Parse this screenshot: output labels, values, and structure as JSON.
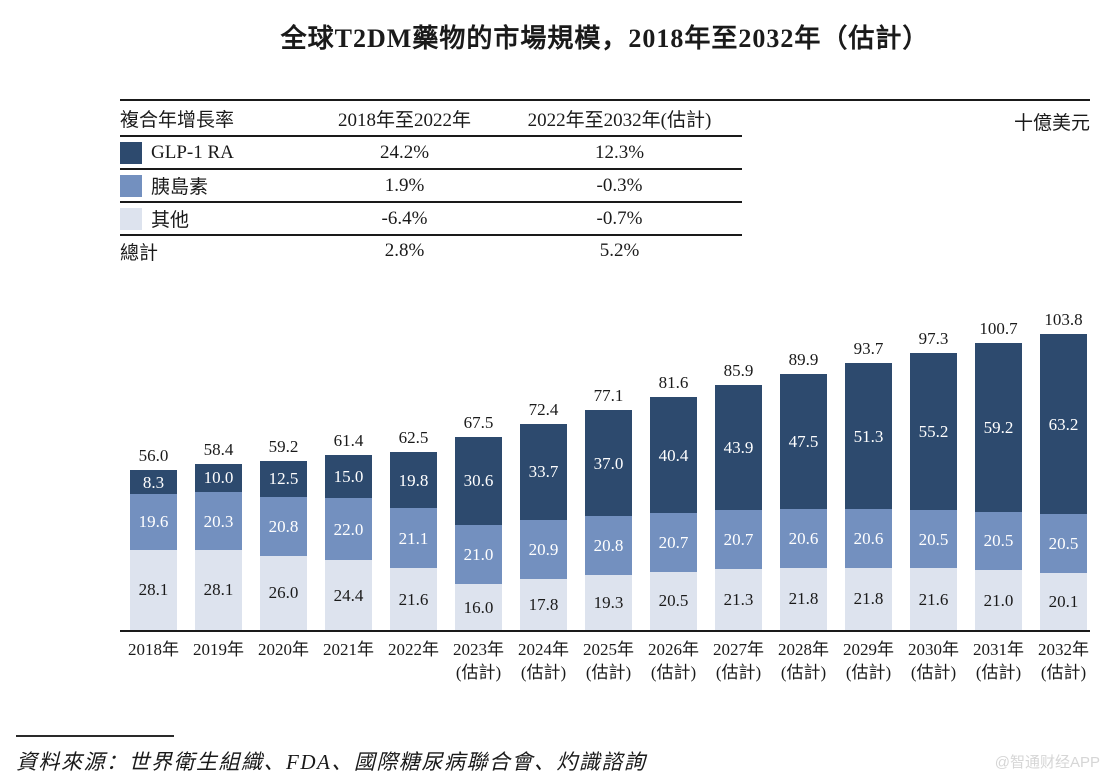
{
  "title": "全球T2DM藥物的市場規模，2018年至2032年（估計）",
  "unit_label": "十億美元",
  "growth_table": {
    "header": [
      "複合年增長率",
      "2018年至2022年",
      "2022年至2032年(估計)"
    ],
    "rows": [
      {
        "label": "GLP-1 RA",
        "swatch": "#2d4a6e",
        "period1": "24.2%",
        "period2": "12.3%"
      },
      {
        "label": "胰島素",
        "swatch": "#7390bf",
        "period1": "1.9%",
        "period2": "-0.3%"
      },
      {
        "label": "其他",
        "swatch": "#dde3ee",
        "period1": "-6.4%",
        "period2": "-0.7%"
      }
    ],
    "total": {
      "label": "總計",
      "period1": "2.8%",
      "period2": "5.2%"
    }
  },
  "chart_data": {
    "type": "bar",
    "stacked": true,
    "title": "全球T2DM藥物的市場規模，2018年至2032年（估計）",
    "ylabel": "十億美元",
    "ylim": [
      0,
      110
    ],
    "grid": false,
    "legend_position": "table-left",
    "categories": [
      {
        "label": "2018年",
        "note": ""
      },
      {
        "label": "2019年",
        "note": ""
      },
      {
        "label": "2020年",
        "note": ""
      },
      {
        "label": "2021年",
        "note": ""
      },
      {
        "label": "2022年",
        "note": ""
      },
      {
        "label": "2023年",
        "note": "(估計)"
      },
      {
        "label": "2024年",
        "note": "(估計)"
      },
      {
        "label": "2025年",
        "note": "(估計)"
      },
      {
        "label": "2026年",
        "note": "(估計)"
      },
      {
        "label": "2027年",
        "note": "(估計)"
      },
      {
        "label": "2028年",
        "note": "(估計)"
      },
      {
        "label": "2029年",
        "note": "(估計)"
      },
      {
        "label": "2030年",
        "note": "(估計)"
      },
      {
        "label": "2031年",
        "note": "(估計)"
      },
      {
        "label": "2032年",
        "note": "(估計)"
      }
    ],
    "series": [
      {
        "name": "其他",
        "color": "#dde3ee",
        "label_color": "#1a1a1a",
        "values": [
          28.1,
          28.1,
          26.0,
          24.4,
          21.6,
          16.0,
          17.8,
          19.3,
          20.5,
          21.3,
          21.8,
          21.8,
          21.6,
          21.0,
          20.1
        ]
      },
      {
        "name": "胰島素",
        "color": "#7390bf",
        "label_color": "#ffffff",
        "values": [
          19.6,
          20.3,
          20.8,
          22.0,
          21.1,
          21.0,
          20.9,
          20.8,
          20.7,
          20.7,
          20.6,
          20.6,
          20.5,
          20.5,
          20.5
        ]
      },
      {
        "name": "GLP-1 RA",
        "color": "#2d4a6e",
        "label_color": "#ffffff",
        "values": [
          8.3,
          10.0,
          12.5,
          15.0,
          19.8,
          30.6,
          33.7,
          37.0,
          40.4,
          43.9,
          47.5,
          51.3,
          55.2,
          59.2,
          63.2
        ]
      }
    ],
    "totals": [
      56.0,
      58.4,
      59.2,
      61.4,
      62.5,
      67.5,
      72.4,
      77.1,
      81.6,
      85.9,
      89.9,
      93.7,
      97.3,
      100.7,
      103.8
    ]
  },
  "source_note": "資料來源：世界衛生組織、FDA、國際糖尿病聯合會、灼識諮詢",
  "watermark": "@智通财经APP"
}
